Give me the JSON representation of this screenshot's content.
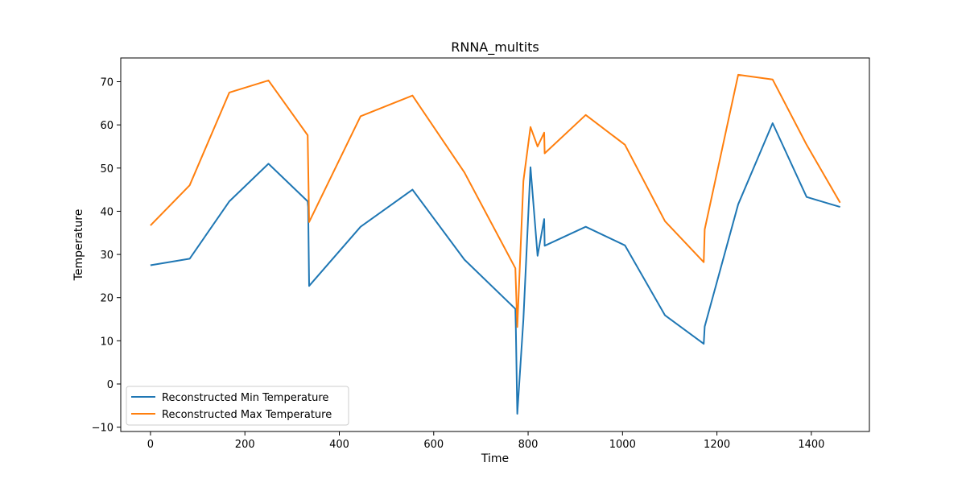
{
  "chart_data": {
    "type": "line",
    "title": "RNNA_multits",
    "xlabel": "Time",
    "ylabel": "Temperature",
    "xlim": [
      -63,
      1523
    ],
    "ylim": [
      -11,
      75.5
    ],
    "xticks": [
      0,
      200,
      400,
      600,
      800,
      1000,
      1200,
      1400
    ],
    "yticks": [
      -10,
      0,
      10,
      20,
      30,
      40,
      50,
      60,
      70
    ],
    "grid": false,
    "legend_position": "lower-left",
    "series": [
      {
        "name": "Reconstructed Min Temperature",
        "color": "#1f77b4",
        "points": [
          [
            0,
            27.5
          ],
          [
            83,
            29.0
          ],
          [
            167,
            42.3
          ],
          [
            250,
            51.0
          ],
          [
            333,
            42.3
          ],
          [
            334,
            41.0
          ],
          [
            336,
            22.7
          ],
          [
            445,
            36.4
          ],
          [
            555,
            45.0
          ],
          [
            665,
            28.8
          ],
          [
            773,
            17.4
          ],
          [
            774,
            13.0
          ],
          [
            777,
            -6.9
          ],
          [
            790,
            15.0
          ],
          [
            805,
            50.2
          ],
          [
            820,
            29.7
          ],
          [
            834,
            38.2
          ],
          [
            835,
            32.0
          ],
          [
            922,
            36.4
          ],
          [
            1005,
            32.1
          ],
          [
            1090,
            15.9
          ],
          [
            1172,
            9.3
          ],
          [
            1174,
            13.3
          ],
          [
            1245,
            41.6
          ],
          [
            1318,
            60.4
          ],
          [
            1390,
            43.3
          ],
          [
            1461,
            41.0
          ]
        ]
      },
      {
        "name": "Reconstructed Max Temperature",
        "color": "#ff7f0e",
        "points": [
          [
            0,
            36.7
          ],
          [
            83,
            46.0
          ],
          [
            167,
            67.5
          ],
          [
            250,
            70.3
          ],
          [
            333,
            57.6
          ],
          [
            336,
            37.5
          ],
          [
            445,
            62.0
          ],
          [
            555,
            66.8
          ],
          [
            665,
            49.0
          ],
          [
            773,
            26.8
          ],
          [
            777,
            13.2
          ],
          [
            790,
            47.0
          ],
          [
            805,
            59.5
          ],
          [
            820,
            55.0
          ],
          [
            834,
            58.2
          ],
          [
            835,
            53.4
          ],
          [
            922,
            62.3
          ],
          [
            1005,
            55.4
          ],
          [
            1090,
            37.7
          ],
          [
            1172,
            28.2
          ],
          [
            1174,
            35.8
          ],
          [
            1245,
            71.6
          ],
          [
            1318,
            70.5
          ],
          [
            1390,
            55.4
          ],
          [
            1461,
            42.0
          ]
        ]
      }
    ]
  }
}
